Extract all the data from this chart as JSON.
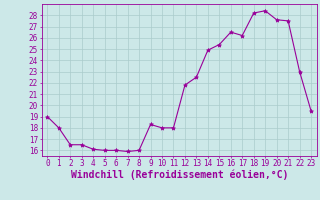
{
  "hours": [
    0,
    1,
    2,
    3,
    4,
    5,
    6,
    7,
    8,
    9,
    10,
    11,
    12,
    13,
    14,
    15,
    16,
    17,
    18,
    19,
    20,
    21,
    22,
    23
  ],
  "values": [
    19.0,
    18.0,
    16.5,
    16.5,
    16.1,
    16.0,
    16.0,
    15.9,
    16.0,
    18.3,
    18.0,
    18.0,
    21.8,
    22.5,
    24.9,
    25.4,
    26.5,
    26.2,
    28.2,
    28.4,
    27.6,
    27.5,
    23.0,
    19.5
  ],
  "line_color": "#990099",
  "marker": "*",
  "marker_size": 3,
  "bg_color": "#cce8e8",
  "grid_color": "#aacccc",
  "xlabel": "Windchill (Refroidissement éolien,°C)",
  "xlabel_color": "#990099",
  "ylim": [
    15.5,
    29.0
  ],
  "yticks": [
    16,
    17,
    18,
    19,
    20,
    21,
    22,
    23,
    24,
    25,
    26,
    27,
    28
  ],
  "xticks": [
    0,
    1,
    2,
    3,
    4,
    5,
    6,
    7,
    8,
    9,
    10,
    11,
    12,
    13,
    14,
    15,
    16,
    17,
    18,
    19,
    20,
    21,
    22,
    23
  ],
  "tick_color": "#990099",
  "tick_fontsize": 5.5,
  "xlabel_fontsize": 7.0
}
